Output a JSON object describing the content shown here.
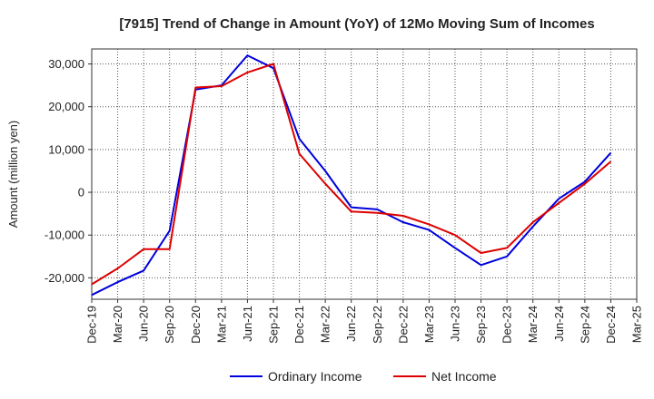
{
  "chart_data": {
    "type": "line",
    "title": "[7915]  Trend of Change in Amount (YoY) of 12Mo Moving Sum of Incomes",
    "xlabel": "",
    "ylabel": "Amount (million yen)",
    "ylim": [
      -25000,
      33500
    ],
    "yticks": [
      30000,
      20000,
      10000,
      0,
      -10000,
      -20000
    ],
    "ytick_labels": [
      "30,000",
      "20,000",
      "10,000",
      "0",
      "-10,000",
      "-20,000"
    ],
    "grid": true,
    "legend_position": "bottom-center",
    "categories": [
      "Dec-19",
      "Mar-20",
      "Jun-20",
      "Sep-20",
      "Dec-20",
      "Mar-21",
      "Jun-21",
      "Sep-21",
      "Dec-21",
      "Mar-22",
      "Jun-22",
      "Sep-22",
      "Dec-22",
      "Mar-23",
      "Jun-23",
      "Sep-23",
      "Dec-23",
      "Mar-24",
      "Jun-24",
      "Sep-24",
      "Dec-24",
      "Mar-25"
    ],
    "series": [
      {
        "name": "Ordinary Income",
        "color": "#0000dd",
        "values": [
          -24000,
          -21000,
          -18300,
          -9000,
          24000,
          25000,
          32000,
          29000,
          12500,
          5000,
          -3500,
          -4000,
          -7000,
          -8800,
          -13000,
          -17000,
          -15000,
          -8000,
          -1500,
          2500,
          9200,
          null
        ]
      },
      {
        "name": "Net Income",
        "color": "#dd0000",
        "values": [
          -21500,
          -17800,
          -13300,
          -13300,
          24500,
          24800,
          28000,
          30000,
          9000,
          2000,
          -4500,
          -4800,
          -5500,
          -7500,
          -10000,
          -14200,
          -13000,
          -7000,
          -2500,
          2000,
          7200,
          null
        ]
      }
    ]
  }
}
